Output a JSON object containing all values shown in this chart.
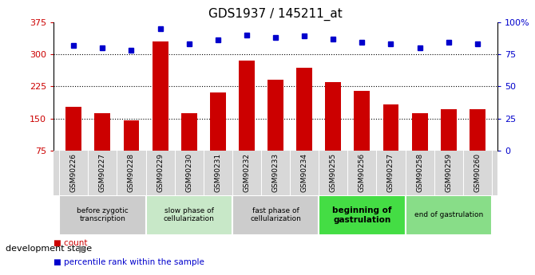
{
  "title": "GDS1937 / 145211_at",
  "samples": [
    "GSM90226",
    "GSM90227",
    "GSM90228",
    "GSM90229",
    "GSM90230",
    "GSM90231",
    "GSM90232",
    "GSM90233",
    "GSM90234",
    "GSM90255",
    "GSM90256",
    "GSM90257",
    "GSM90258",
    "GSM90259",
    "GSM90260"
  ],
  "counts": [
    178,
    163,
    145,
    330,
    162,
    210,
    285,
    240,
    268,
    235,
    215,
    183,
    163,
    172,
    172
  ],
  "percentiles": [
    82,
    80,
    78,
    95,
    83,
    86,
    90,
    88,
    89,
    87,
    84,
    83,
    80,
    84,
    83
  ],
  "ylim_left": [
    75,
    375
  ],
  "ylim_right": [
    0,
    100
  ],
  "yticks_left": [
    75,
    150,
    225,
    300,
    375
  ],
  "yticks_right": [
    0,
    25,
    50,
    75,
    100
  ],
  "yticklabels_right": [
    "0",
    "25",
    "50",
    "75",
    "100%"
  ],
  "bar_color": "#cc0000",
  "dot_color": "#0000cc",
  "stages": [
    {
      "label": "before zygotic\ntranscription",
      "start": 0,
      "end": 3,
      "color": "#cccccc",
      "bold": false
    },
    {
      "label": "slow phase of\ncellularization",
      "start": 3,
      "end": 6,
      "color": "#c8e8c8",
      "bold": false
    },
    {
      "label": "fast phase of\ncellularization",
      "start": 6,
      "end": 9,
      "color": "#cccccc",
      "bold": false
    },
    {
      "label": "beginning of\ngastrulation",
      "start": 9,
      "end": 12,
      "color": "#44dd44",
      "bold": true
    },
    {
      "label": "end of gastrulation",
      "start": 12,
      "end": 15,
      "color": "#88dd88",
      "bold": false
    }
  ],
  "legend_count_color": "#cc0000",
  "legend_pct_color": "#0000cc",
  "figsize": [
    6.7,
    3.45
  ],
  "dpi": 100
}
